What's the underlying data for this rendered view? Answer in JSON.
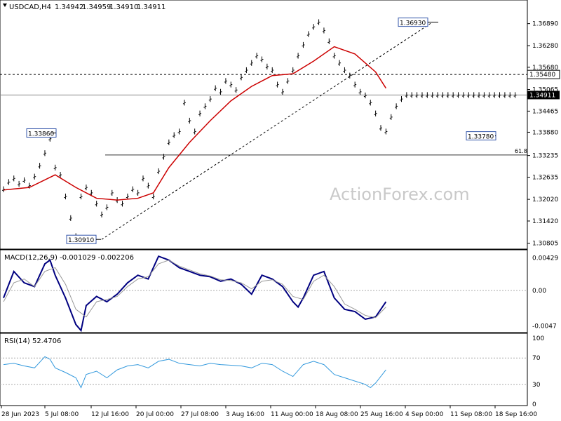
{
  "chart_data": {
    "type": "line",
    "ohlc_header": {
      "symbol_tf": "USDCAD,H4",
      "open": "1.34942",
      "high": "1.34959",
      "low": "1.34910",
      "close": "1.34911"
    },
    "watermark": "ActionForex.com",
    "price_axis": {
      "ylim": [
        1.307,
        1.3735
      ],
      "ticks": [
        "1.36890",
        "1.36280",
        "1.35680",
        "1.35065",
        "1.34465",
        "1.33880",
        "1.33235",
        "1.32635",
        "1.32020",
        "1.31420",
        "1.30805"
      ],
      "current_tag": "1.34911",
      "level_tag": "1.35480"
    },
    "levels": {
      "resistance": 1.3548,
      "fib": {
        "value": 1.3325,
        "label": "61.8"
      },
      "current": 1.34911
    },
    "annotations": [
      {
        "text": "1.33860",
        "value": 1.3386
      },
      {
        "text": "1.30910",
        "value": 1.3091
      },
      {
        "text": "1.36930",
        "value": 1.3693
      },
      {
        "text": "1.33780",
        "value": 1.3378
      }
    ],
    "time_axis": [
      "28 Jun 2023",
      "5 Jul 08:00",
      "12 Jul 16:00",
      "20 Jul 00:00",
      "27 Jul 08:00",
      "3 Aug 16:00",
      "11 Aug 00:00",
      "18 Aug 08:00",
      "25 Aug 16:00",
      "4 Sep 00:00",
      "11 Sep 08:00",
      "18 Sep 16:00"
    ],
    "price_series": {
      "name": "USDCAD",
      "x": [
        0,
        10,
        20,
        30,
        40,
        50,
        60,
        70,
        80,
        90,
        100,
        110,
        120,
        130,
        140,
        150,
        160,
        170,
        180,
        190,
        200,
        210,
        220,
        230,
        240,
        250,
        260,
        270,
        280,
        290,
        300,
        310,
        320,
        330,
        340,
        350,
        360,
        370,
        380,
        390,
        400,
        410,
        420,
        430,
        440,
        450,
        460,
        470,
        480,
        490,
        500,
        510,
        520,
        530,
        540,
        550,
        560,
        570,
        580,
        590,
        600,
        610,
        620,
        630,
        640,
        650,
        660,
        670,
        680,
        690,
        700,
        710,
        720,
        730,
        740,
        750,
        760,
        770,
        780,
        790,
        800,
        810,
        820,
        830,
        840,
        850,
        860,
        870,
        880,
        890,
        900,
        910,
        920,
        930,
        940,
        950,
        960,
        970,
        980,
        990,
        1000
      ],
      "close": [
        1.323,
        1.325,
        1.326,
        1.3245,
        1.3255,
        1.324,
        1.3265,
        1.3295,
        1.333,
        1.337,
        1.329,
        1.327,
        1.321,
        1.315,
        1.31,
        1.321,
        1.3235,
        1.322,
        1.319,
        1.316,
        1.318,
        1.322,
        1.32,
        1.319,
        1.321,
        1.323,
        1.322,
        1.326,
        1.324,
        1.321,
        1.328,
        1.332,
        1.336,
        1.338,
        1.339,
        1.347,
        1.342,
        1.339,
        1.344,
        1.346,
        1.348,
        1.351,
        1.35,
        1.353,
        1.352,
        1.3505,
        1.354,
        1.356,
        1.358,
        1.36,
        1.359,
        1.357,
        1.356,
        1.352,
        1.35,
        1.353,
        1.356,
        1.36,
        1.363,
        1.366,
        1.368,
        1.3693,
        1.367,
        1.364,
        1.36,
        1.358,
        1.356,
        1.3545,
        1.352,
        1.35,
        1.349,
        1.347,
        1.344,
        1.34,
        1.339,
        1.343,
        1.346,
        1.348,
        1.3491,
        1.3491,
        1.3491,
        1.3491,
        1.3491,
        1.3491,
        1.3491,
        1.3491,
        1.3491,
        1.3491,
        1.3491,
        1.3491,
        1.3491,
        1.3491,
        1.3491,
        1.3491,
        1.3491,
        1.3491,
        1.3491,
        1.3491,
        1.3491,
        1.3491,
        1.3491
      ]
    },
    "ma_series": {
      "x": [
        0,
        50,
        100,
        140,
        180,
        220,
        260,
        290,
        320,
        360,
        400,
        440,
        480,
        520,
        560,
        600,
        640,
        680,
        720,
        740
      ],
      "y": [
        1.3228,
        1.3235,
        1.327,
        1.3235,
        1.3205,
        1.32,
        1.3205,
        1.322,
        1.329,
        1.336,
        1.342,
        1.3475,
        1.3515,
        1.3545,
        1.355,
        1.3585,
        1.3625,
        1.3605,
        1.3555,
        1.351
      ]
    },
    "macd": {
      "label": "MACD(12,26,9) -0.001029 -0.002206",
      "ticks": [
        "0.00429",
        "0.00",
        "-0.0047"
      ],
      "ylim": [
        -0.0052,
        0.0048
      ],
      "main_x": [
        0,
        20,
        40,
        60,
        80,
        90,
        100,
        120,
        140,
        150,
        160,
        180,
        200,
        220,
        240,
        260,
        280,
        300,
        320,
        340,
        360,
        380,
        400,
        420,
        440,
        460,
        480,
        500,
        520,
        540,
        560,
        570,
        580,
        600,
        620,
        640,
        660,
        680,
        700,
        720,
        740
      ],
      "main_y": [
        -0.001,
        0.0025,
        0.001,
        0.0005,
        0.0035,
        0.004,
        0.002,
        -0.001,
        -0.0045,
        -0.0053,
        -0.002,
        -0.0008,
        -0.0015,
        -0.0005,
        0.001,
        0.002,
        0.0015,
        0.0045,
        0.004,
        0.003,
        0.0025,
        0.002,
        0.0018,
        0.0012,
        0.0015,
        0.0008,
        -0.0005,
        0.002,
        0.0015,
        0.0005,
        -0.0015,
        -0.0022,
        -0.001,
        0.002,
        0.0025,
        -0.001,
        -0.0025,
        -0.0028,
        -0.0038,
        -0.0035,
        -0.0015
      ],
      "signal_x": [
        0,
        20,
        40,
        60,
        80,
        100,
        120,
        140,
        160,
        180,
        200,
        220,
        240,
        260,
        280,
        300,
        320,
        340,
        360,
        380,
        400,
        420,
        440,
        460,
        480,
        500,
        520,
        540,
        560,
        580,
        600,
        620,
        640,
        660,
        680,
        700,
        720,
        740
      ],
      "signal_y": [
        -0.0015,
        0.001,
        0.0015,
        0.0005,
        0.0025,
        0.003,
        0.0008,
        -0.0025,
        -0.0035,
        -0.0015,
        -0.0012,
        -0.0008,
        0.0005,
        0.0015,
        0.0018,
        0.0035,
        0.004,
        0.0032,
        0.0027,
        0.0022,
        0.0019,
        0.0014,
        0.0013,
        0.001,
        0.0002,
        0.0012,
        0.0014,
        0.0008,
        -0.0008,
        -0.0012,
        0.0012,
        0.002,
        0.0005,
        -0.0018,
        -0.0025,
        -0.0033,
        -0.0036,
        -0.0022
      ]
    },
    "rsi": {
      "label": "RSI(14) 52.4706",
      "ticks": [
        "100",
        "70",
        "30",
        "0"
      ],
      "ylim": [
        0,
        100
      ],
      "x": [
        0,
        20,
        40,
        60,
        80,
        90,
        100,
        120,
        140,
        150,
        160,
        180,
        200,
        220,
        240,
        260,
        280,
        300,
        320,
        340,
        360,
        380,
        400,
        420,
        440,
        460,
        480,
        500,
        520,
        540,
        560,
        580,
        600,
        620,
        640,
        660,
        680,
        700,
        710,
        720,
        740
      ],
      "y": [
        60,
        62,
        58,
        55,
        72,
        68,
        55,
        48,
        40,
        25,
        45,
        50,
        40,
        52,
        58,
        60,
        55,
        65,
        68,
        62,
        60,
        58,
        62,
        60,
        59,
        58,
        55,
        62,
        60,
        50,
        42,
        60,
        65,
        60,
        45,
        40,
        35,
        30,
        25,
        32,
        52
      ]
    }
  }
}
